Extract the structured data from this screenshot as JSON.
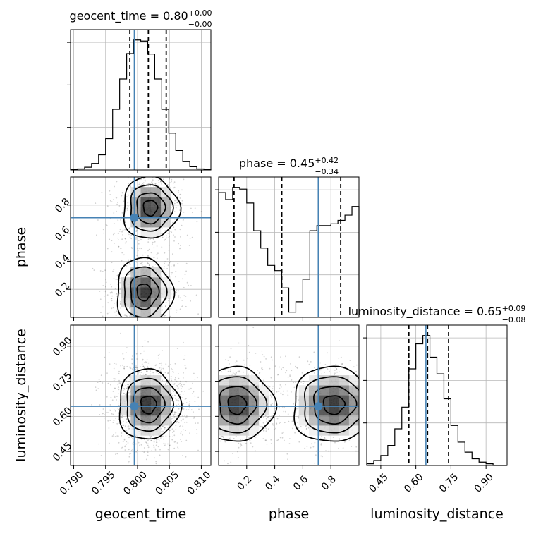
{
  "chart_data": {
    "type": "corner",
    "truth_color": "#4682b4",
    "parameters": [
      {
        "name": "geocent_time",
        "label": "geocent_time",
        "title_text": "geocent_time = 0.80",
        "title_sup": "+0.00",
        "title_sub": "−0.00",
        "median": 0.8017,
        "quantiles": [
          0.7988,
          0.8017,
          0.8045
        ],
        "truth": 0.7995,
        "range": [
          0.7895,
          0.8115
        ],
        "ticks": [
          0.79,
          0.795,
          0.8,
          0.805,
          0.81
        ],
        "tick_labels": [
          "0.790",
          "0.795",
          "0.800",
          "0.805",
          "0.810"
        ],
        "hist": {
          "edges": [
            0.7895,
            0.7906,
            0.7917,
            0.7928,
            0.7939,
            0.795,
            0.7961,
            0.7972,
            0.7983,
            0.7994,
            0.8005,
            0.8016,
            0.8027,
            0.8038,
            0.8049,
            0.806,
            0.8071,
            0.8082,
            0.8093,
            0.8104,
            0.8115
          ],
          "counts": [
            1,
            2,
            5,
            12,
            28,
            58,
            112,
            168,
            215,
            240,
            238,
            214,
            168,
            112,
            68,
            36,
            16,
            6,
            2,
            1
          ]
        }
      },
      {
        "name": "phase",
        "label": "phase",
        "title_text": "phase = 0.45",
        "title_sup": "+0.42",
        "title_sub": "−0.34",
        "median": 0.45,
        "quantiles": [
          0.11,
          0.45,
          0.87
        ],
        "truth": 0.71,
        "range": [
          0.0,
          1.0
        ],
        "ticks": [
          0.2,
          0.4,
          0.6,
          0.8
        ],
        "tick_labels": [
          "0.2",
          "0.4",
          "0.6",
          "0.8"
        ],
        "hist": {
          "edges": [
            0.0,
            0.05,
            0.1,
            0.15,
            0.2,
            0.25,
            0.3,
            0.35,
            0.4,
            0.45,
            0.5,
            0.55,
            0.6,
            0.65,
            0.7,
            0.75,
            0.8,
            0.85,
            0.9,
            0.95,
            1.0
          ],
          "counts": [
            72,
            68,
            75,
            74,
            66,
            50,
            40,
            30,
            27,
            17,
            3,
            9,
            22,
            50,
            53,
            53,
            54,
            56,
            59,
            64
          ]
        }
      },
      {
        "name": "luminosity_distance",
        "label": "luminosity_distance",
        "title_text": "luminosity_distance = 0.65",
        "title_sup": "+0.09",
        "title_sub": "−0.08",
        "median": 0.65,
        "quantiles": [
          0.57,
          0.65,
          0.74
        ],
        "truth": 0.643,
        "range": [
          0.39,
          0.99
        ],
        "ticks": [
          0.45,
          0.6,
          0.75,
          0.9
        ],
        "tick_labels": [
          "0.45",
          "0.60",
          "0.75",
          "0.90"
        ],
        "hist": {
          "edges": [
            0.39,
            0.42,
            0.45,
            0.48,
            0.51,
            0.54,
            0.57,
            0.6,
            0.63,
            0.66,
            0.69,
            0.72,
            0.75,
            0.78,
            0.81,
            0.84,
            0.87,
            0.9,
            0.93,
            0.96,
            0.99
          ],
          "counts": [
            1,
            3,
            6,
            12,
            22,
            35,
            58,
            73,
            78,
            65,
            55,
            40,
            24,
            14,
            8,
            4,
            2,
            1,
            0,
            0
          ]
        }
      }
    ],
    "pairs": [
      {
        "x": "geocent_time",
        "y": "phase",
        "modes": [
          {
            "mx": 0.802,
            "my": 0.78,
            "sx": 0.0022,
            "sy": 0.11,
            "w": 0.5
          },
          {
            "mx": 0.801,
            "my": 0.18,
            "sx": 0.0022,
            "sy": 0.12,
            "w": 0.5
          }
        ]
      },
      {
        "x": "geocent_time",
        "y": "luminosity_distance",
        "modes": [
          {
            "mx": 0.8017,
            "my": 0.65,
            "sx": 0.0024,
            "sy": 0.075,
            "w": 1.0
          }
        ]
      },
      {
        "x": "phase",
        "y": "luminosity_distance",
        "modes": [
          {
            "mx": 0.13,
            "my": 0.65,
            "sx": 0.13,
            "sy": 0.08,
            "w": 0.5
          },
          {
            "mx": 0.82,
            "my": 0.65,
            "sx": 0.15,
            "sy": 0.08,
            "w": 0.5
          }
        ]
      }
    ]
  }
}
